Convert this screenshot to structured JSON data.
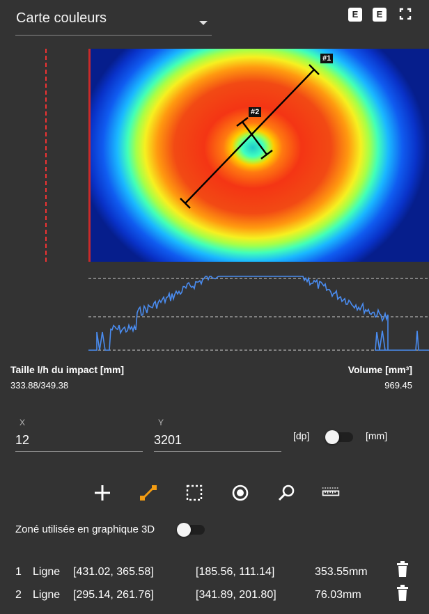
{
  "select": {
    "value": "Carte couleurs"
  },
  "toolbar": {
    "btn1": "E",
    "btn2": "E",
    "fullscreen_icon": "fullscreen-icon"
  },
  "image": {
    "marker1": "#1",
    "marker2": "#2"
  },
  "impact": {
    "size_label": "Taille l/h du impact [mm]",
    "size_value": "333.88/349.38",
    "volume_label": "Volume [mm³]",
    "volume_value": "969.45"
  },
  "coords": {
    "x_label": "X",
    "x_value": "12",
    "y_label": "Y",
    "y_value": "3201",
    "unit_left": "[dp]",
    "unit_right": "[mm]",
    "unit_mm_on": false
  },
  "tools": [
    "add-icon",
    "line-icon",
    "rectangle-select-icon",
    "circle-target-icon",
    "zoom-icon",
    "measure-ruler-icon"
  ],
  "zone3d": {
    "label": "Zoné utilisée en graphique 3D",
    "on": false
  },
  "measurements": [
    {
      "index": "1",
      "type": "Ligne",
      "start": "[431.02, 365.58]",
      "end": "[185.56, 111.14]",
      "length": "353.55mm"
    },
    {
      "index": "2",
      "type": "Ligne",
      "start": "[295.14, 261.76]",
      "end": "[341.89, 201.80]",
      "length": "76.03mm"
    }
  ],
  "colors": {
    "background": "#333333",
    "accent": "#f39c12",
    "profile_line": "#4a8cf0"
  }
}
